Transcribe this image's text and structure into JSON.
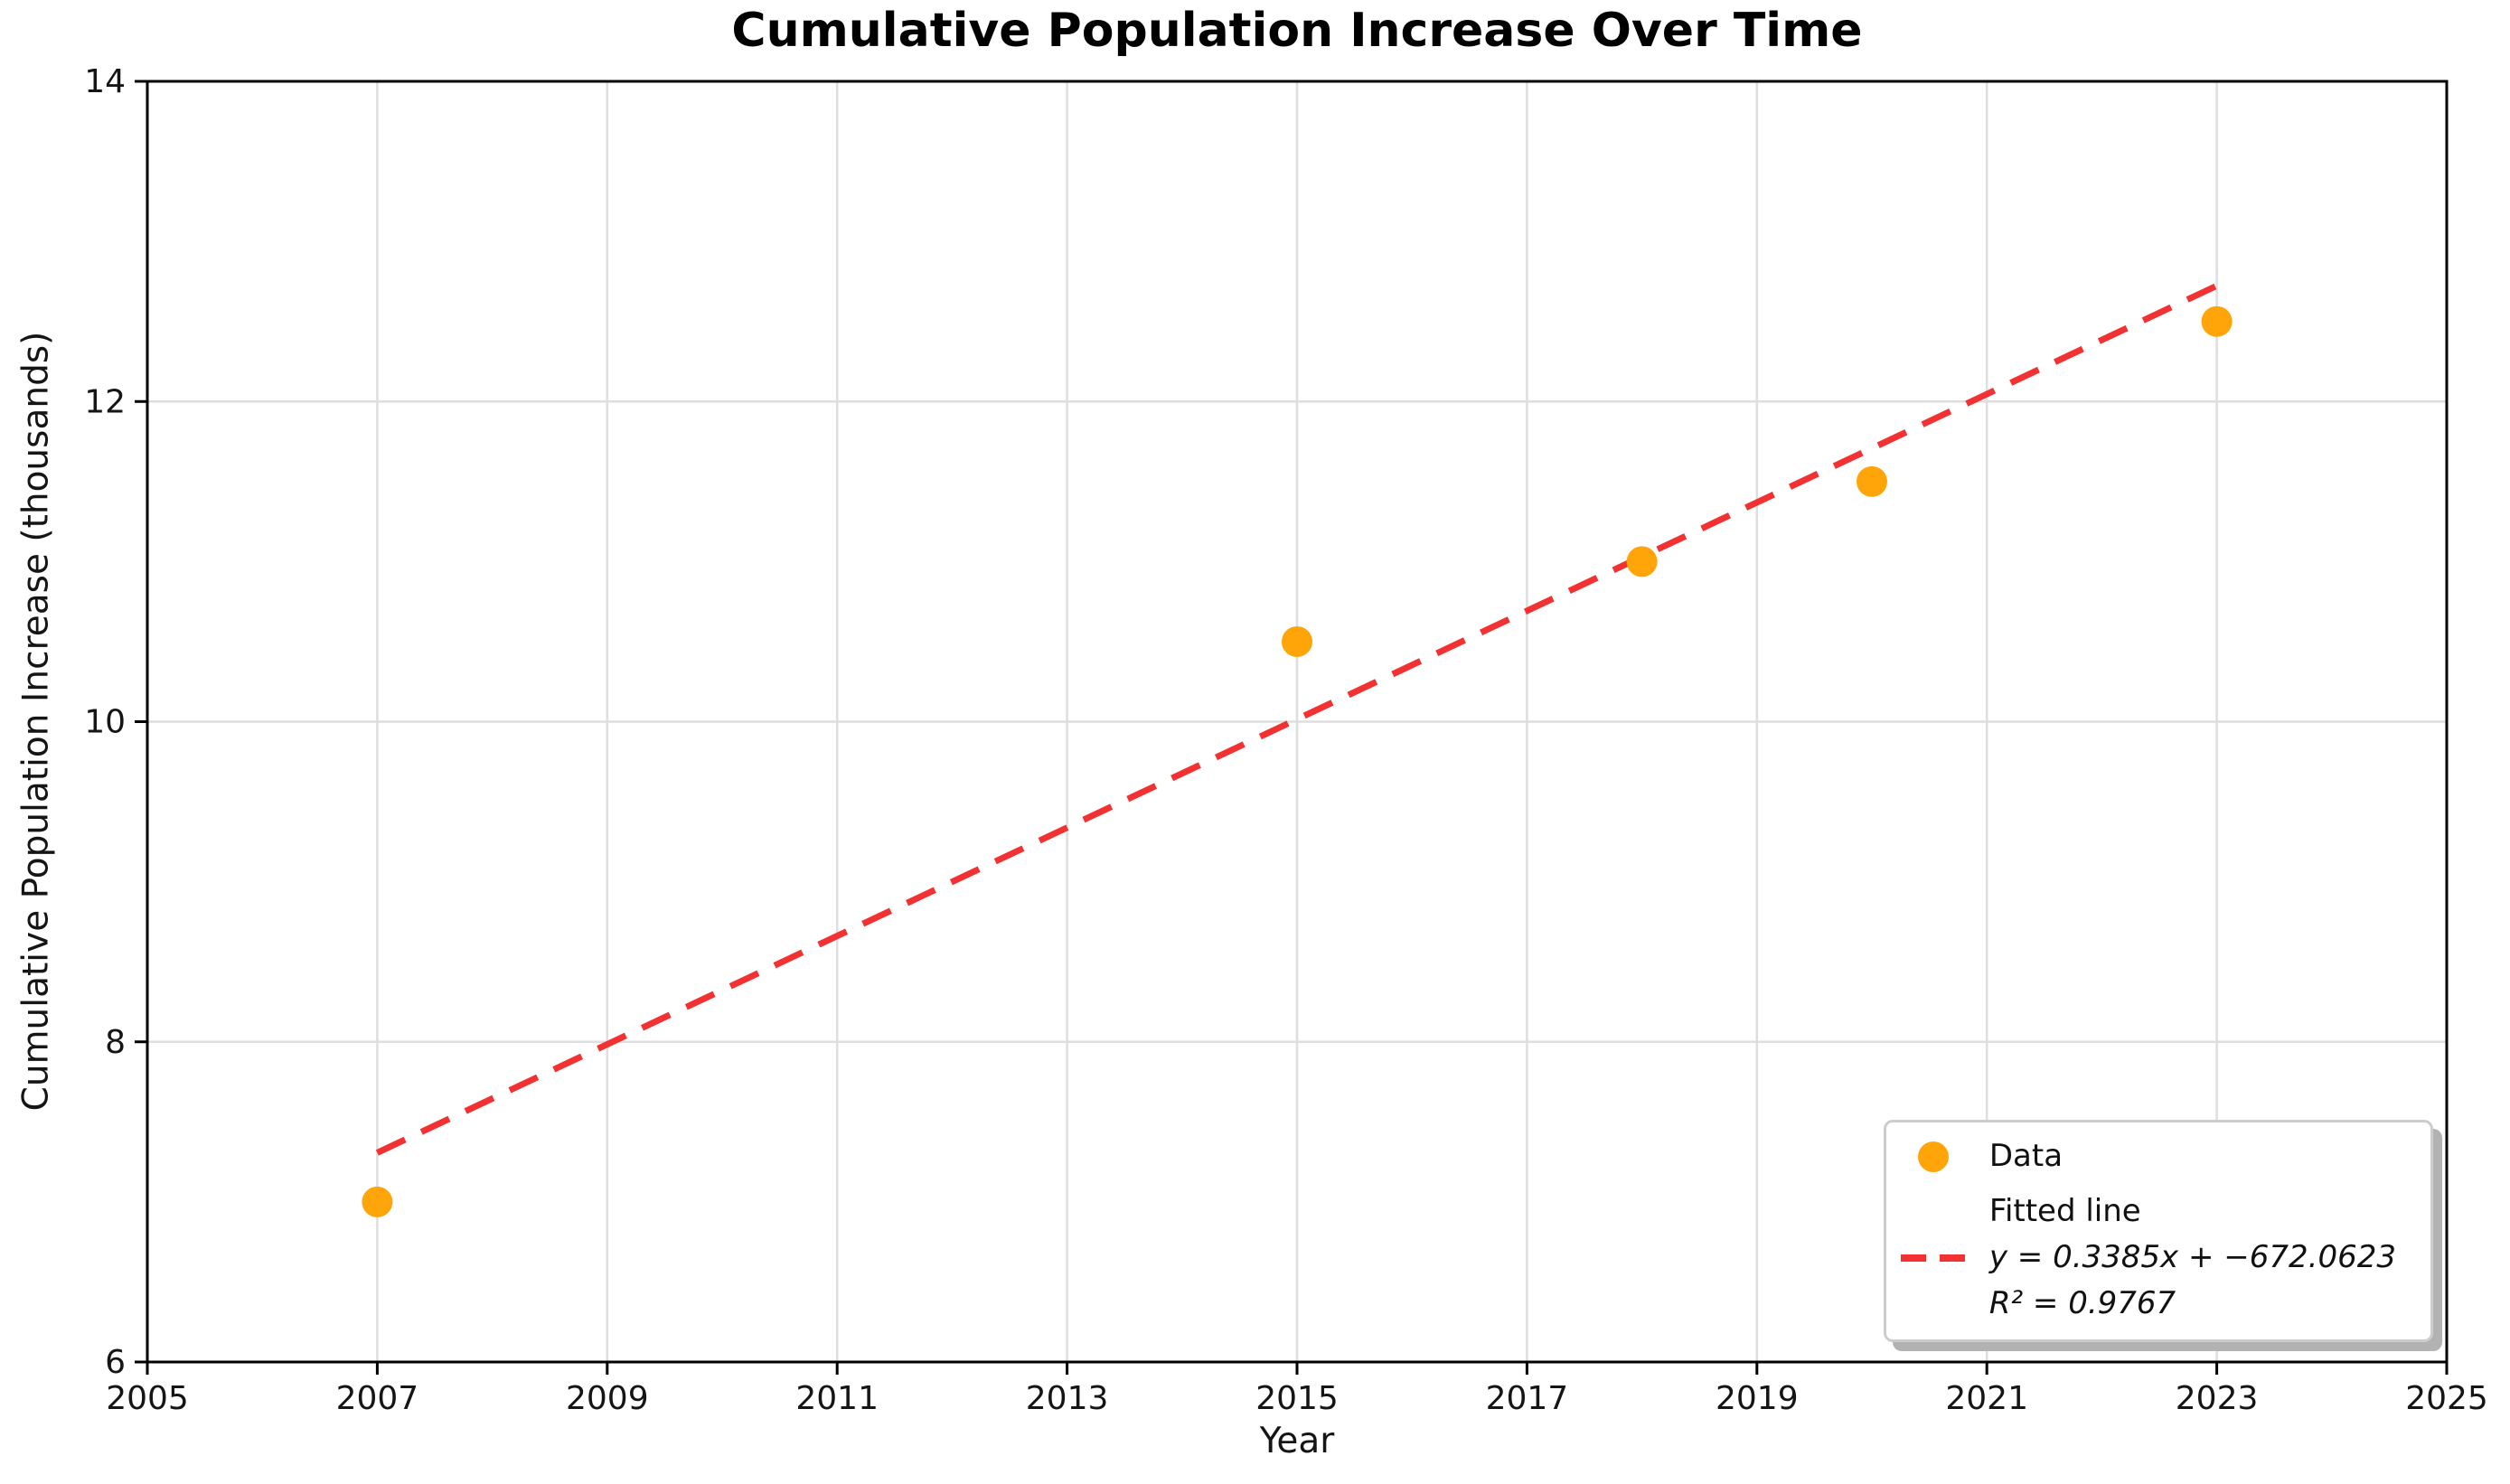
{
  "chart_data": {
    "type": "scatter",
    "title": "Cumulative Population Increase Over Time",
    "xlabel": "Year",
    "ylabel": "Cumulative Population Increase (thousands)",
    "xlim": [
      2005,
      2025
    ],
    "ylim": [
      6,
      14
    ],
    "x_ticks": [
      "2005",
      "2007",
      "2009",
      "2011",
      "2013",
      "2015",
      "2017",
      "2019",
      "2021",
      "2023",
      "2025"
    ],
    "y_ticks": [
      "6",
      "8",
      "10",
      "12",
      "14"
    ],
    "grid": true,
    "legend_position": "lower right",
    "series": [
      {
        "name": "Data",
        "type": "scatter",
        "x": [
          2007,
          2015,
          2018,
          2020,
          2023
        ],
        "y": [
          7.0,
          10.5,
          11.0,
          11.5,
          12.5
        ]
      },
      {
        "name": "Fitted line",
        "type": "line",
        "slope": 0.3385,
        "intercept": -672.0623,
        "r_squared": 0.9767,
        "x_start": 2007,
        "x_end": 2023
      }
    ],
    "colors": {
      "point": "#FFA50A",
      "fit_line": "#F23232",
      "grid": "#DEDEDE",
      "spine": "#000000"
    }
  },
  "legend": {
    "data_label": "Data",
    "fit_label": "Fitted line",
    "equation": "y = 0.3385x + −672.0623",
    "r_squared_label": "R² = 0.9767"
  }
}
